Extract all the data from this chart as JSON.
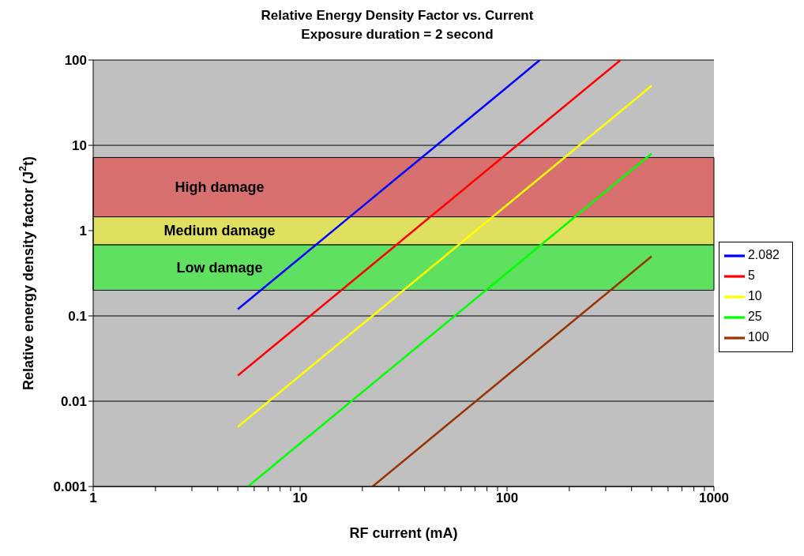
{
  "chart_data": {
    "type": "line",
    "title": "Relative Energy Density Factor vs. Current",
    "subtitle": "Exposure duration = 2 second",
    "xlabel": "RF current (mA)",
    "ylabel": "Relative energy density factor (J$^{2}$t)",
    "log": "xy",
    "grid": "y",
    "legend": "right",
    "marker": "none",
    "line_style": "solid",
    "xlim": [
      1,
      1000
    ],
    "ylim": [
      0.001,
      100
    ],
    "xticks": [
      1,
      {
        "value": 2,
        "label": null
      },
      {
        "value": 3,
        "label": null
      },
      {
        "value": 4,
        "label": null
      },
      {
        "value": 5,
        "label": null
      },
      {
        "value": 6,
        "label": null
      },
      {
        "value": 7,
        "label": null
      },
      {
        "value": 8,
        "label": null
      },
      {
        "value": 9,
        "label": null
      },
      10,
      {
        "value": 20,
        "label": null
      },
      {
        "value": 30,
        "label": null
      },
      {
        "value": 40,
        "label": null
      },
      {
        "value": 50,
        "label": null
      },
      {
        "value": 60,
        "label": null
      },
      {
        "value": 70,
        "label": null
      },
      {
        "value": 80,
        "label": null
      },
      {
        "value": 90,
        "label": null
      },
      100,
      {
        "value": 200,
        "label": null
      },
      {
        "value": 300,
        "label": null
      },
      {
        "value": 400,
        "label": null
      },
      {
        "value": 500,
        "label": null
      },
      {
        "value": 600,
        "label": null
      },
      {
        "value": 700,
        "label": null
      },
      {
        "value": 800,
        "label": null
      },
      {
        "value": 900,
        "label": null
      },
      1000
    ],
    "yticks": [
      0.001,
      0.01,
      0.1,
      1,
      10,
      100
    ],
    "bands": [
      {
        "axis": "y",
        "from": 1.45,
        "to": 7.2,
        "label": "High damage",
        "color": "#d87070"
      },
      {
        "axis": "y",
        "from": 0.68,
        "to": 1.45,
        "label": "Medium damage",
        "color": "#e0e060"
      },
      {
        "axis": "y",
        "from": 0.2,
        "to": 0.68,
        "label": "Low damage",
        "color": "#60e060"
      }
    ],
    "series": [
      {
        "name": "2.082",
        "color": "#0000ff",
        "x": [
          5,
          10,
          20,
          50,
          100,
          144
        ],
        "values": [
          0.12,
          0.48,
          1.92,
          12,
          48,
          100
        ]
      },
      {
        "name": "5",
        "color": "#ff0000",
        "x": [
          5,
          10,
          20,
          50,
          100,
          200,
          354
        ],
        "values": [
          0.02,
          0.08,
          0.32,
          2,
          8,
          32,
          100
        ]
      },
      {
        "name": "10",
        "color": "#ffff00",
        "x": [
          5,
          10,
          20,
          50,
          100,
          200,
          500
        ],
        "values": [
          0.005,
          0.02,
          0.08,
          0.5,
          2,
          8,
          50
        ]
      },
      {
        "name": "25",
        "color": "#00ff00",
        "x": [
          5.6,
          10,
          20,
          50,
          100,
          200,
          500
        ],
        "values": [
          0.001,
          0.0032,
          0.0128,
          0.08,
          0.32,
          1.28,
          8
        ]
      },
      {
        "name": "100",
        "color": "#993300",
        "x": [
          22.4,
          50,
          100,
          200,
          500
        ],
        "values": [
          0.001,
          0.005,
          0.02,
          0.08,
          0.5
        ]
      }
    ]
  }
}
